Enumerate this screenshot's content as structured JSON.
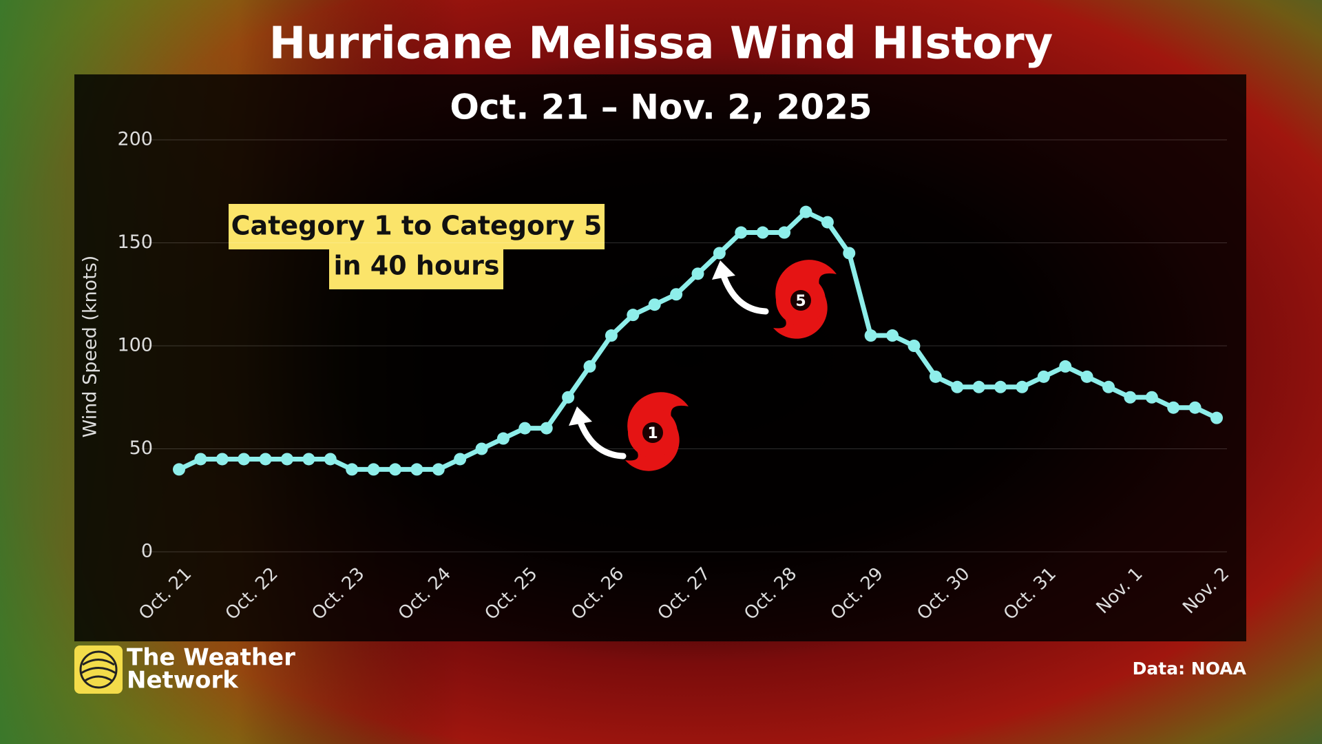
{
  "chart_data": {
    "type": "line",
    "title": "Hurricane Melissa Wind HIstory",
    "subtitle": "Oct. 21 – Nov. 2, 2025",
    "y_label": "Wind Speed (knots)",
    "categories": [
      "Oct. 21",
      null,
      null,
      null,
      "Oct. 22",
      null,
      null,
      null,
      "Oct. 23",
      null,
      null,
      null,
      "Oct. 24",
      null,
      null,
      null,
      "Oct. 25",
      null,
      null,
      null,
      "Oct. 26",
      null,
      null,
      null,
      "Oct. 27",
      null,
      null,
      null,
      "Oct. 28",
      null,
      null,
      null,
      "Oct. 29",
      null,
      null,
      null,
      "Oct. 30",
      null,
      null,
      null,
      "Oct. 31",
      null,
      null,
      null,
      "Nov. 1",
      null,
      null,
      null,
      "Nov. 2"
    ],
    "values": [
      40,
      45,
      45,
      45,
      45,
      45,
      45,
      45,
      40,
      40,
      40,
      40,
      40,
      45,
      50,
      55,
      60,
      60,
      75,
      90,
      105,
      115,
      120,
      125,
      135,
      145,
      155,
      155,
      155,
      165,
      160,
      145,
      105,
      105,
      100,
      85,
      80,
      80,
      80,
      80,
      85,
      90,
      85,
      80,
      75,
      75,
      70,
      70,
      65
    ],
    "color": "#8eeeea",
    "ylim": [
      0,
      200
    ],
    "yticks": [
      0,
      50,
      100,
      150,
      200
    ],
    "grid": true,
    "annotations": [
      {
        "lines": [
          "Category 1 to Category 5",
          "in 40 hours"
        ]
      },
      {
        "label": "1"
      },
      {
        "label": "5"
      }
    ],
    "source": "Data: NOAA",
    "logo": [
      "The Weather",
      "Network"
    ]
  }
}
